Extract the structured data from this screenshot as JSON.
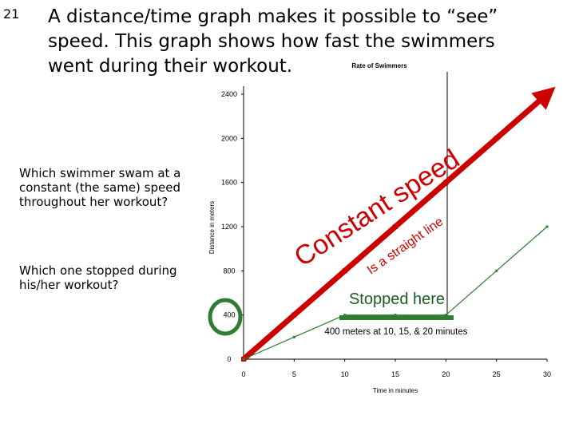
{
  "slide": {
    "number": "21",
    "heading": "A distance/time graph makes it possible to “see” speed. This graph shows how fast the swimmers went during their workout.",
    "questions": [
      "Which swimmer swam at a constant (the same) speed throughout her workout?",
      "Which one stopped during his/her workout?"
    ]
  },
  "chart_data": {
    "type": "line",
    "title": "Rate of Swimmers",
    "x_label": "Time in minutes",
    "y_label": "Distance in meters",
    "x": [
      0,
      5,
      10,
      15,
      20,
      25,
      30
    ],
    "series": [
      {
        "color": "#cc0000",
        "values": [
          0,
          400,
          800,
          1200,
          1600,
          2000,
          2400
        ]
      },
      {
        "color": "#2e7d32",
        "values": [
          0,
          200,
          400,
          400,
          400,
          800,
          1200
        ]
      }
    ],
    "xlim": [
      0,
      30
    ],
    "ylim": [
      0,
      2400
    ],
    "xticks": [
      0,
      5,
      10,
      15,
      20,
      25,
      30
    ],
    "yticks": [
      0,
      400,
      800,
      1200,
      1600,
      2000,
      2400
    ],
    "annotations": [
      "Constant speed",
      "Is a straight line",
      "Stopped here",
      "400 meters at 10, 15, & 20 minutes"
    ]
  }
}
